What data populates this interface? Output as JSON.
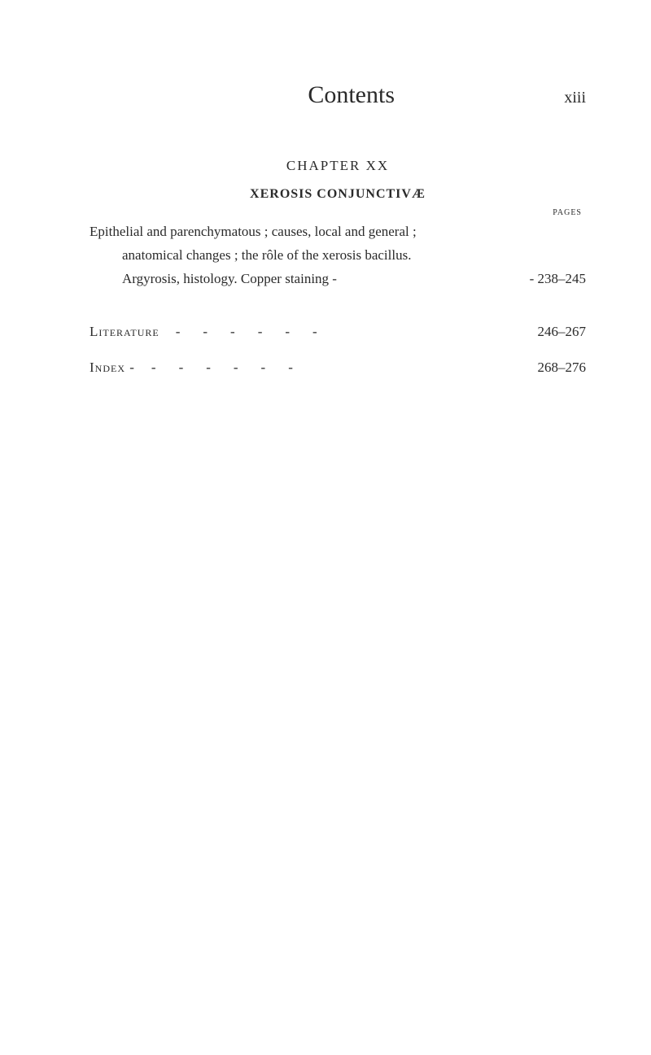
{
  "header": {
    "title": "Contents",
    "page_roman": "xiii"
  },
  "chapter": {
    "label": "CHAPTER XX",
    "subtitle": "XEROSIS CONJUNCTIVÆ",
    "pages_heading": "PAGES"
  },
  "body": {
    "line1": "Epithelial and parenchymatous ; causes, local and general ;",
    "line2": "anatomical changes ; the rôle of the xerosis bacillus.",
    "line3_text": "Argyrosis, histology.   Copper staining     -",
    "line3_pages": "-   238–245"
  },
  "entries": [
    {
      "label": "Literature",
      "dashes": "------",
      "pages": "246–267"
    },
    {
      "label": "Index   -",
      "dashes": "------",
      "pages": "268–276"
    }
  ]
}
